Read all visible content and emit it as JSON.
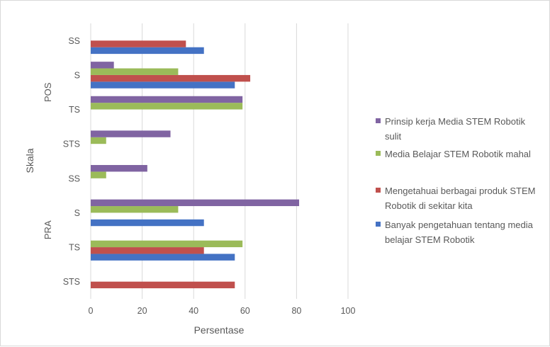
{
  "chart_data": {
    "type": "bar",
    "orientation": "horizontal",
    "xlabel": "Persentase",
    "ylabel": "Skala",
    "xlim": [
      0,
      100
    ],
    "xticks": [
      0,
      20,
      40,
      60,
      80,
      100
    ],
    "grid": "vertical",
    "legend_position": "right",
    "groups": [
      "PRA",
      "POS"
    ],
    "categories": [
      {
        "group": "PRA",
        "label": "STS"
      },
      {
        "group": "PRA",
        "label": "TS"
      },
      {
        "group": "PRA",
        "label": "S"
      },
      {
        "group": "PRA",
        "label": "SS"
      },
      {
        "group": "POS",
        "label": "STS"
      },
      {
        "group": "POS",
        "label": "TS"
      },
      {
        "group": "POS",
        "label": "S"
      },
      {
        "group": "POS",
        "label": "SS"
      }
    ],
    "series": [
      {
        "name": "Banyak pengetahuan tentang media belajar STEM Robotik",
        "color": "#4472c4",
        "values": [
          0,
          56,
          44,
          0,
          0,
          0,
          56,
          44
        ]
      },
      {
        "name": "Mengetahuai berbagai produk STEM Robotik di sekitar kita",
        "color": "#c0504d",
        "values": [
          56,
          44,
          0,
          0,
          0,
          0,
          62,
          37
        ]
      },
      {
        "name": "Media Belajar STEM Robotik mahal",
        "color": "#9bbb59",
        "values": [
          0,
          59,
          34,
          6,
          6,
          59,
          34,
          0
        ]
      },
      {
        "name": "Prinsip kerja Media STEM Robotik sulit",
        "color": "#8064a2",
        "values": [
          0,
          0,
          81,
          22,
          31,
          59,
          9,
          0
        ]
      }
    ]
  }
}
